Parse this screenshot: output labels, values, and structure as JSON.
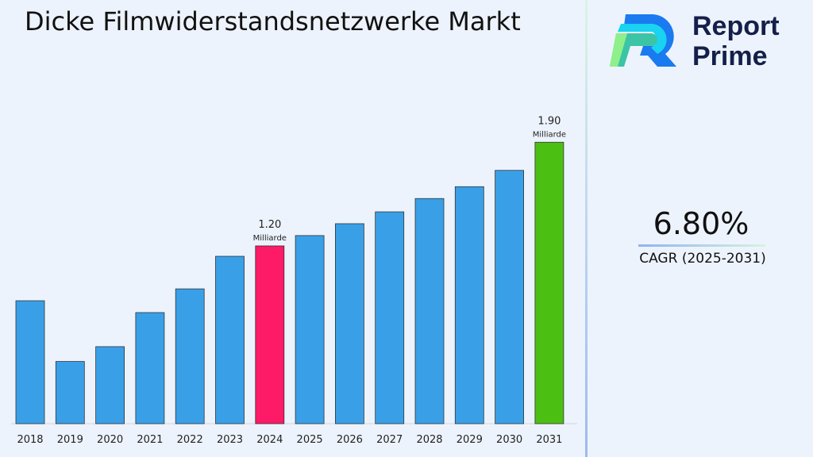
{
  "title": "Dicke Filmwiderstandsnetzwerke Markt",
  "logo": {
    "line1": "Report",
    "line2": "Prime"
  },
  "cagr": {
    "value": "6.80%",
    "label": "CAGR (2025-2031)"
  },
  "chart_data": {
    "type": "bar",
    "categories": [
      "2018",
      "2019",
      "2020",
      "2021",
      "2022",
      "2023",
      "2024",
      "2025",
      "2026",
      "2027",
      "2028",
      "2029",
      "2030",
      "2031"
    ],
    "values": [
      0.83,
      0.42,
      0.52,
      0.75,
      0.91,
      1.13,
      1.2,
      1.27,
      1.35,
      1.43,
      1.52,
      1.6,
      1.71,
      1.9
    ],
    "unit": "Milliarde",
    "data_labels": [
      {
        "category": "2024",
        "value": "1.20",
        "unit": "Milliarde"
      },
      {
        "category": "2031",
        "value": "1.90",
        "unit": "Milliarde"
      }
    ],
    "colors": {
      "default": "#39a0e8",
      "2024": "#fd1a66",
      "2031": "#4cbf13"
    },
    "ylim": [
      0,
      2.0
    ],
    "grid": false
  }
}
